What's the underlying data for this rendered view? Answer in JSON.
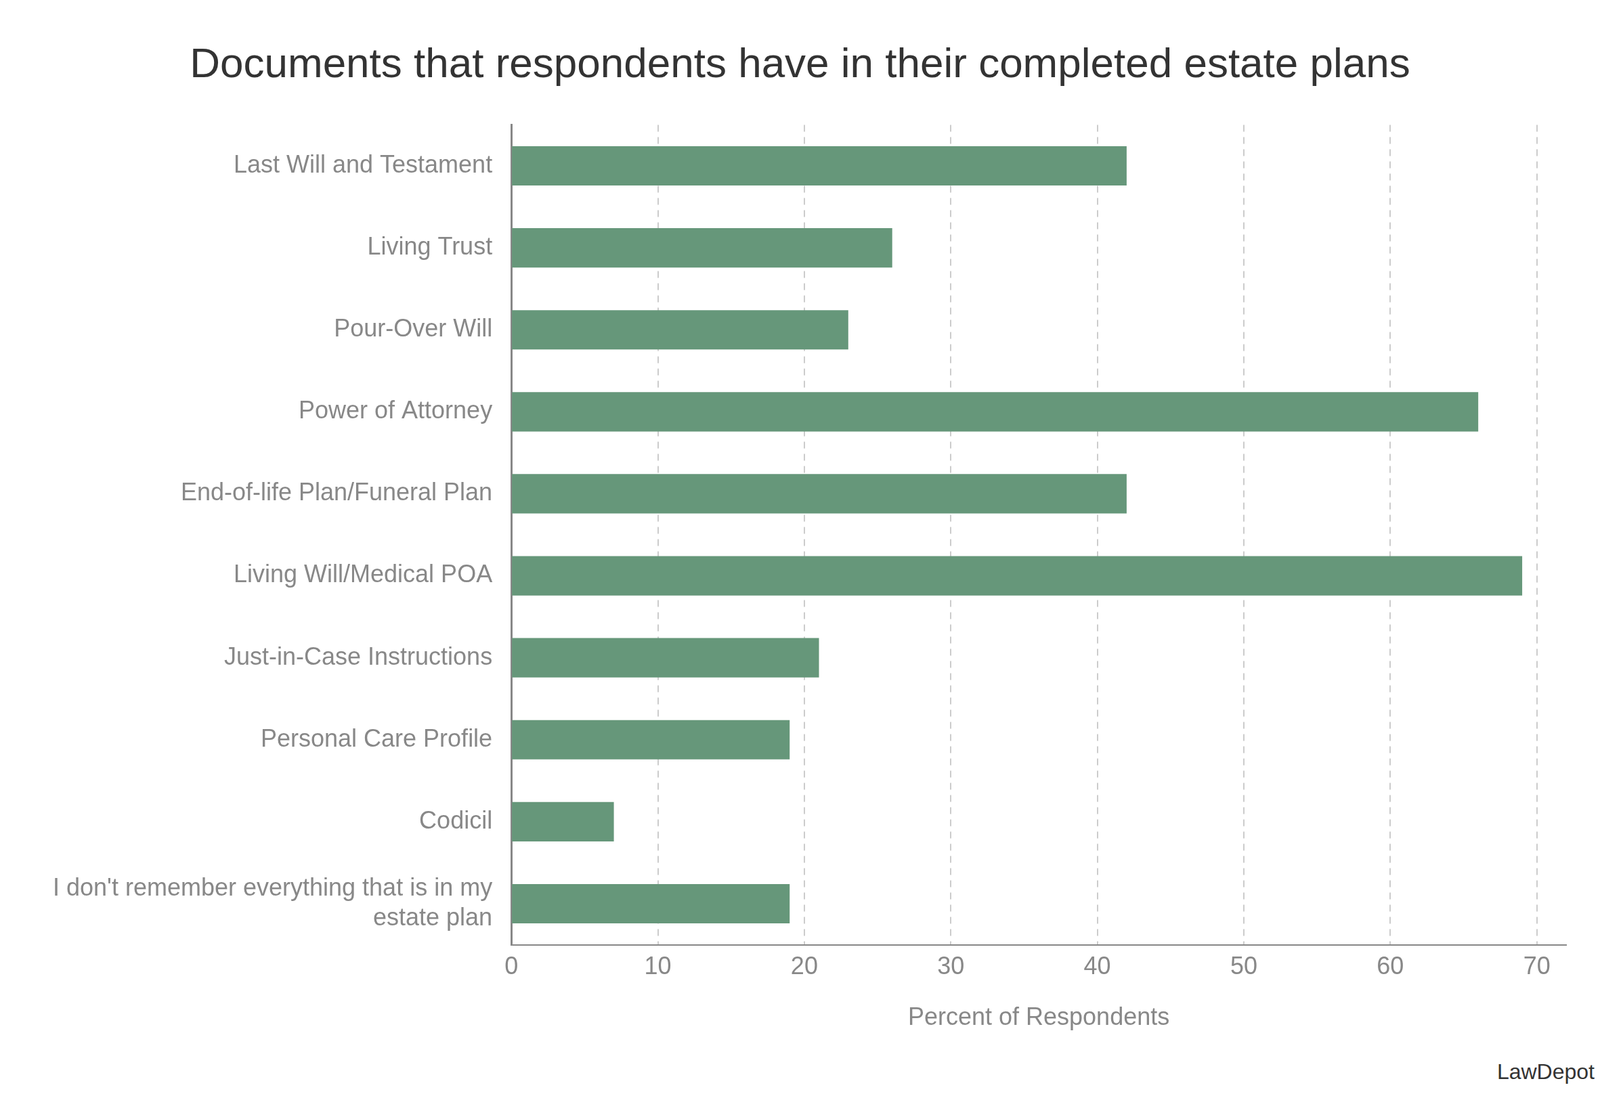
{
  "chart_data": {
    "type": "bar",
    "orientation": "horizontal",
    "title": "Documents that respondents have in their completed estate plans",
    "x_label": "Percent of Respondents",
    "source": "LawDepot",
    "categories": [
      "Last Will and Testament",
      "Living Trust",
      "Pour-Over Will",
      "Power of Attorney",
      "End-of-life Plan/Funeral Plan",
      "Living Will/Medical POA",
      "Just-in-Case Instructions",
      "Personal Care Profile",
      "Codicil",
      "I don't remember everything that is in my estate plan"
    ],
    "values": [
      42,
      26,
      23,
      66,
      42,
      69,
      21,
      19,
      7,
      19
    ],
    "color": "#66977a",
    "xlim": [
      0,
      72
    ],
    "xticks": [
      0,
      10,
      20,
      30,
      40,
      50,
      60,
      70
    ],
    "grid": true,
    "data_labels": false
  }
}
